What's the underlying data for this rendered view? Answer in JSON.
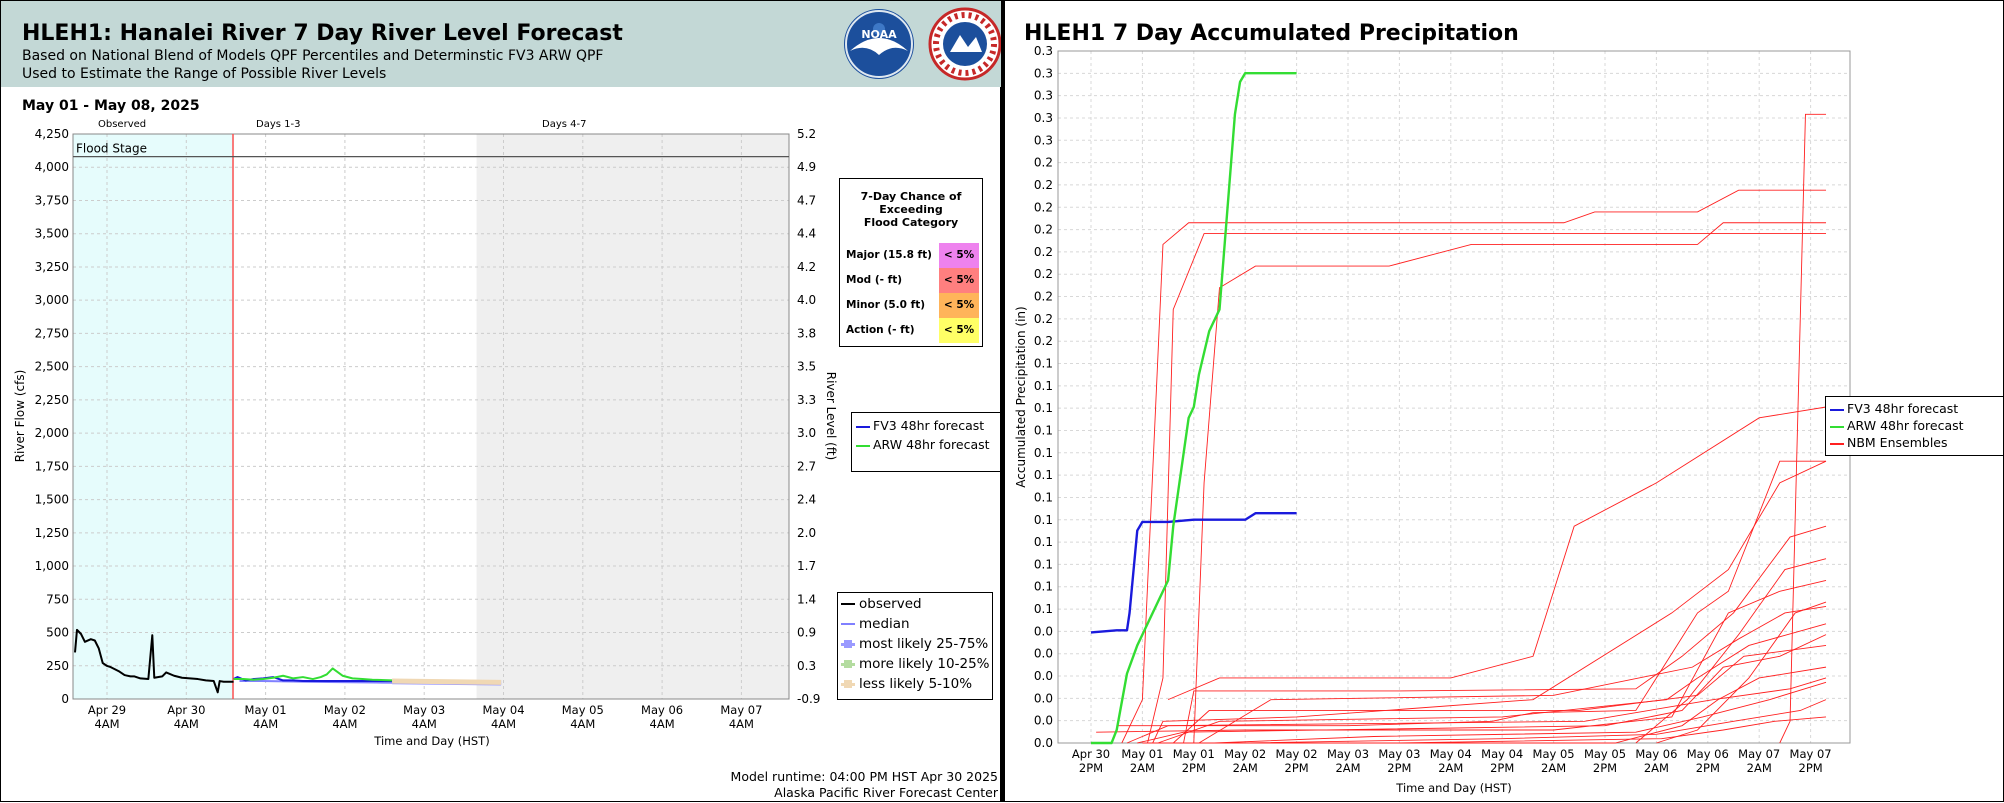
{
  "left_panel": {
    "title": "HLEH1: Hanalei River 7 Day River Level Forecast",
    "subtitle_1": "Based on National Blend of Models QPF Percentiles and Determinstic FV3 ARW QPF",
    "subtitle_2": "Used to Estimate the Range of Possible River Levels",
    "date_range": "May 01 - May 08, 2025",
    "logo_noaa_text": "NOAA",
    "logo_nws_text": "NATIONAL WEATHER SERVICE",
    "period_labels": [
      "Observed",
      "Days 1-3",
      "Days 4-7"
    ],
    "flood_stage_label": "Flood Stage",
    "chance_table": {
      "title": [
        "7-Day Chance of",
        "Exceeding",
        "Flood Category"
      ],
      "rows": [
        {
          "label": "Major (15.8 ft)",
          "value": "< 5%",
          "color": "#ee82ee"
        },
        {
          "label": "Mod (- ft)",
          "value": "< 5%",
          "color": "#ff7f7f"
        },
        {
          "label": "Minor (5.0 ft)",
          "value": "< 5%",
          "color": "#ffb45a"
        },
        {
          "label": "Action (- ft)",
          "value": "< 5%",
          "color": "#ffff66"
        }
      ]
    },
    "legend_forecast": [
      {
        "name": "FV3 48hr forecast",
        "color": "#1a1adc"
      },
      {
        "name": "ARW 48hr forecast",
        "color": "#33dd33"
      }
    ],
    "legend_obs": [
      {
        "name": "observed",
        "color": "#000000",
        "kind": "line"
      },
      {
        "name": "median",
        "color": "#8080ff",
        "kind": "line"
      },
      {
        "name": "most likely 25-75%",
        "color": "#9a9aff",
        "kind": "box"
      },
      {
        "name": "more likely 10-25%",
        "color": "#b4dca0",
        "kind": "box"
      },
      {
        "name": "less likely 5-10%",
        "color": "#f0d8b4",
        "kind": "box"
      }
    ],
    "footer_1": "Model runtime: 04:00 PM HST Apr 30 2025",
    "footer_2": "Alaska Pacific River Forecast Center"
  },
  "right_panel": {
    "title": "HLEH1 7 Day Accumulated Precipitation"
  },
  "chart_data": [
    {
      "type": "line",
      "title": "HLEH1: Hanalei River 7 Day River Level Forecast",
      "xlabel": "Time and Day (HST)",
      "ylabel": "River Flow (cfs)",
      "y2label": "River Level (ft)",
      "ylim": [
        0,
        4250
      ],
      "y_ticks": [
        "0",
        "250",
        "500",
        "750",
        "1,000",
        "1,250",
        "1,500",
        "1,750",
        "2,000",
        "2,250",
        "2,500",
        "2,750",
        "3,000",
        "3,250",
        "3,500",
        "3,750",
        "4,000",
        "4,250"
      ],
      "y2_ticks": [
        "-0.9",
        "0.3",
        "0.9",
        "1.4",
        "1.7",
        "2.0",
        "2.4",
        "2.7",
        "3.0",
        "3.3",
        "3.5",
        "3.8",
        "4.0",
        "4.2",
        "4.4",
        "4.7",
        "4.9",
        "5.2"
      ],
      "x_ticks": [
        [
          "Apr 29",
          "4AM"
        ],
        [
          "Apr 30",
          "4AM"
        ],
        [
          "May 01",
          "4AM"
        ],
        [
          "May 02",
          "4AM"
        ],
        [
          "May 03",
          "4AM"
        ],
        [
          "May 04",
          "4AM"
        ],
        [
          "May 05",
          "4AM"
        ],
        [
          "May 06",
          "4AM"
        ],
        [
          "May 07",
          "4AM"
        ]
      ],
      "grid": true,
      "flood_stage_cfs": 4080,
      "series": [
        {
          "name": "observed",
          "color": "#000000",
          "x": [
            0.0,
            0.1,
            0.3,
            0.5,
            0.8,
            1.0,
            1.2,
            1.4,
            1.6,
            1.8,
            2.2,
            2.5,
            2.8,
            3.0,
            3.3,
            3.7,
            3.9,
            4.0,
            4.4,
            4.6,
            5.0,
            5.4,
            5.8,
            6.2,
            6.6,
            7.0,
            7.2,
            7.3,
            7.5,
            8.0
          ],
          "y": [
            350,
            520,
            490,
            430,
            450,
            440,
            380,
            270,
            250,
            240,
            210,
            180,
            170,
            170,
            155,
            150,
            480,
            160,
            170,
            200,
            175,
            160,
            155,
            150,
            140,
            135,
            50,
            135,
            130,
            130
          ]
        },
        {
          "name": "median",
          "color": "#8080ff",
          "x": [
            8.3,
            9.4,
            10.6,
            11.8,
            12.8,
            14.0,
            15.2,
            16.4,
            17.6,
            18.8,
            20.0,
            21.5
          ],
          "y": [
            135,
            135,
            133,
            130,
            128,
            126,
            124,
            122,
            120,
            118,
            116,
            115
          ]
        },
        {
          "name": "FV3 48hr forecast",
          "color": "#1a1adc",
          "x": [
            8.0,
            8.2,
            8.6,
            9.0,
            9.5,
            10.0,
            10.5,
            11.0,
            11.5,
            12.0,
            13.0,
            14.0,
            15.0,
            16.0
          ],
          "y": [
            150,
            165,
            140,
            150,
            155,
            165,
            140,
            140,
            135,
            135,
            135,
            135,
            135,
            135
          ]
        },
        {
          "name": "ARW 48hr forecast",
          "color": "#33dd33",
          "x": [
            8.0,
            8.5,
            9.0,
            9.5,
            10.0,
            10.5,
            11.0,
            11.5,
            12.0,
            12.4,
            12.7,
            13.0,
            13.5,
            14.0,
            14.5,
            15.0,
            16.0
          ],
          "y": [
            150,
            150,
            145,
            150,
            160,
            175,
            155,
            165,
            150,
            165,
            185,
            230,
            175,
            155,
            150,
            145,
            140
          ]
        },
        {
          "name": "most likely 25-75%",
          "color": "#9a9aff",
          "x": [
            16.0,
            21.5
          ],
          "y": [
            130,
            120
          ]
        },
        {
          "name": "less likely 5-10%",
          "color": "#f0d8b4",
          "x": [
            16.0,
            21.5
          ],
          "y": [
            135,
            125
          ]
        }
      ]
    },
    {
      "type": "line",
      "title": "HLEH1 7 Day Accumulated Precipitation",
      "xlabel": "Time and Day (HST)",
      "ylabel": "Accumulated Precipitation (in)",
      "ylim": [
        0,
        0.3
      ],
      "y_ticks": [
        "0.0",
        "0.0",
        "0.0",
        "0.0",
        "0.0",
        "0.0",
        "0.1",
        "0.1",
        "0.1",
        "0.1",
        "0.1",
        "0.1",
        "0.1",
        "0.1",
        "0.1",
        "0.1",
        "0.1",
        "0.1",
        "0.2",
        "0.2",
        "0.2",
        "0.2",
        "0.2",
        "0.2",
        "0.2",
        "0.2",
        "0.2",
        "0.3",
        "0.3",
        "0.3",
        "0.3",
        "0.3"
      ],
      "x_ticks": [
        [
          "Apr 30",
          "2PM"
        ],
        [
          "May 01",
          "2AM"
        ],
        [
          "May 01",
          "2PM"
        ],
        [
          "May 02",
          "2AM"
        ],
        [
          "May 02",
          "2PM"
        ],
        [
          "May 03",
          "2AM"
        ],
        [
          "May 03",
          "2PM"
        ],
        [
          "May 04",
          "2AM"
        ],
        [
          "May 04",
          "2PM"
        ],
        [
          "May 05",
          "2AM"
        ],
        [
          "May 05",
          "2PM"
        ],
        [
          "May 06",
          "2AM"
        ],
        [
          "May 06",
          "2PM"
        ],
        [
          "May 07",
          "2AM"
        ],
        [
          "May 07",
          "2PM"
        ]
      ],
      "grid": true,
      "series": [
        {
          "name": "FV3 48hr forecast",
          "color": "#1a1adc",
          "x": [
            0.0,
            0.5,
            0.7,
            0.75,
            0.9,
            1.0,
            1.5,
            2.0,
            2.5,
            3.0,
            3.2,
            3.5,
            4.0
          ],
          "y": [
            0.051,
            0.052,
            0.052,
            0.06,
            0.098,
            0.102,
            0.102,
            0.103,
            0.103,
            0.103,
            0.106,
            0.106,
            0.106
          ]
        },
        {
          "name": "ARW 48hr forecast",
          "color": "#33dd33",
          "x": [
            0.0,
            0.4,
            0.5,
            0.7,
            0.9,
            1.0,
            1.5,
            1.6,
            1.9,
            2.0,
            2.1,
            2.3,
            2.5,
            2.6,
            2.7,
            2.8,
            2.9,
            3.0,
            3.2,
            3.5,
            4.0
          ],
          "y": [
            0.0,
            0.0,
            0.006,
            0.032,
            0.045,
            0.05,
            0.075,
            0.1,
            0.15,
            0.155,
            0.17,
            0.19,
            0.2,
            0.23,
            0.26,
            0.29,
            0.305,
            0.309,
            0.309,
            0.309,
            0.309
          ]
        },
        {
          "name": "NBM Ensembles",
          "color": "#ff2020",
          "x": [],
          "y": []
        }
      ]
    }
  ]
}
